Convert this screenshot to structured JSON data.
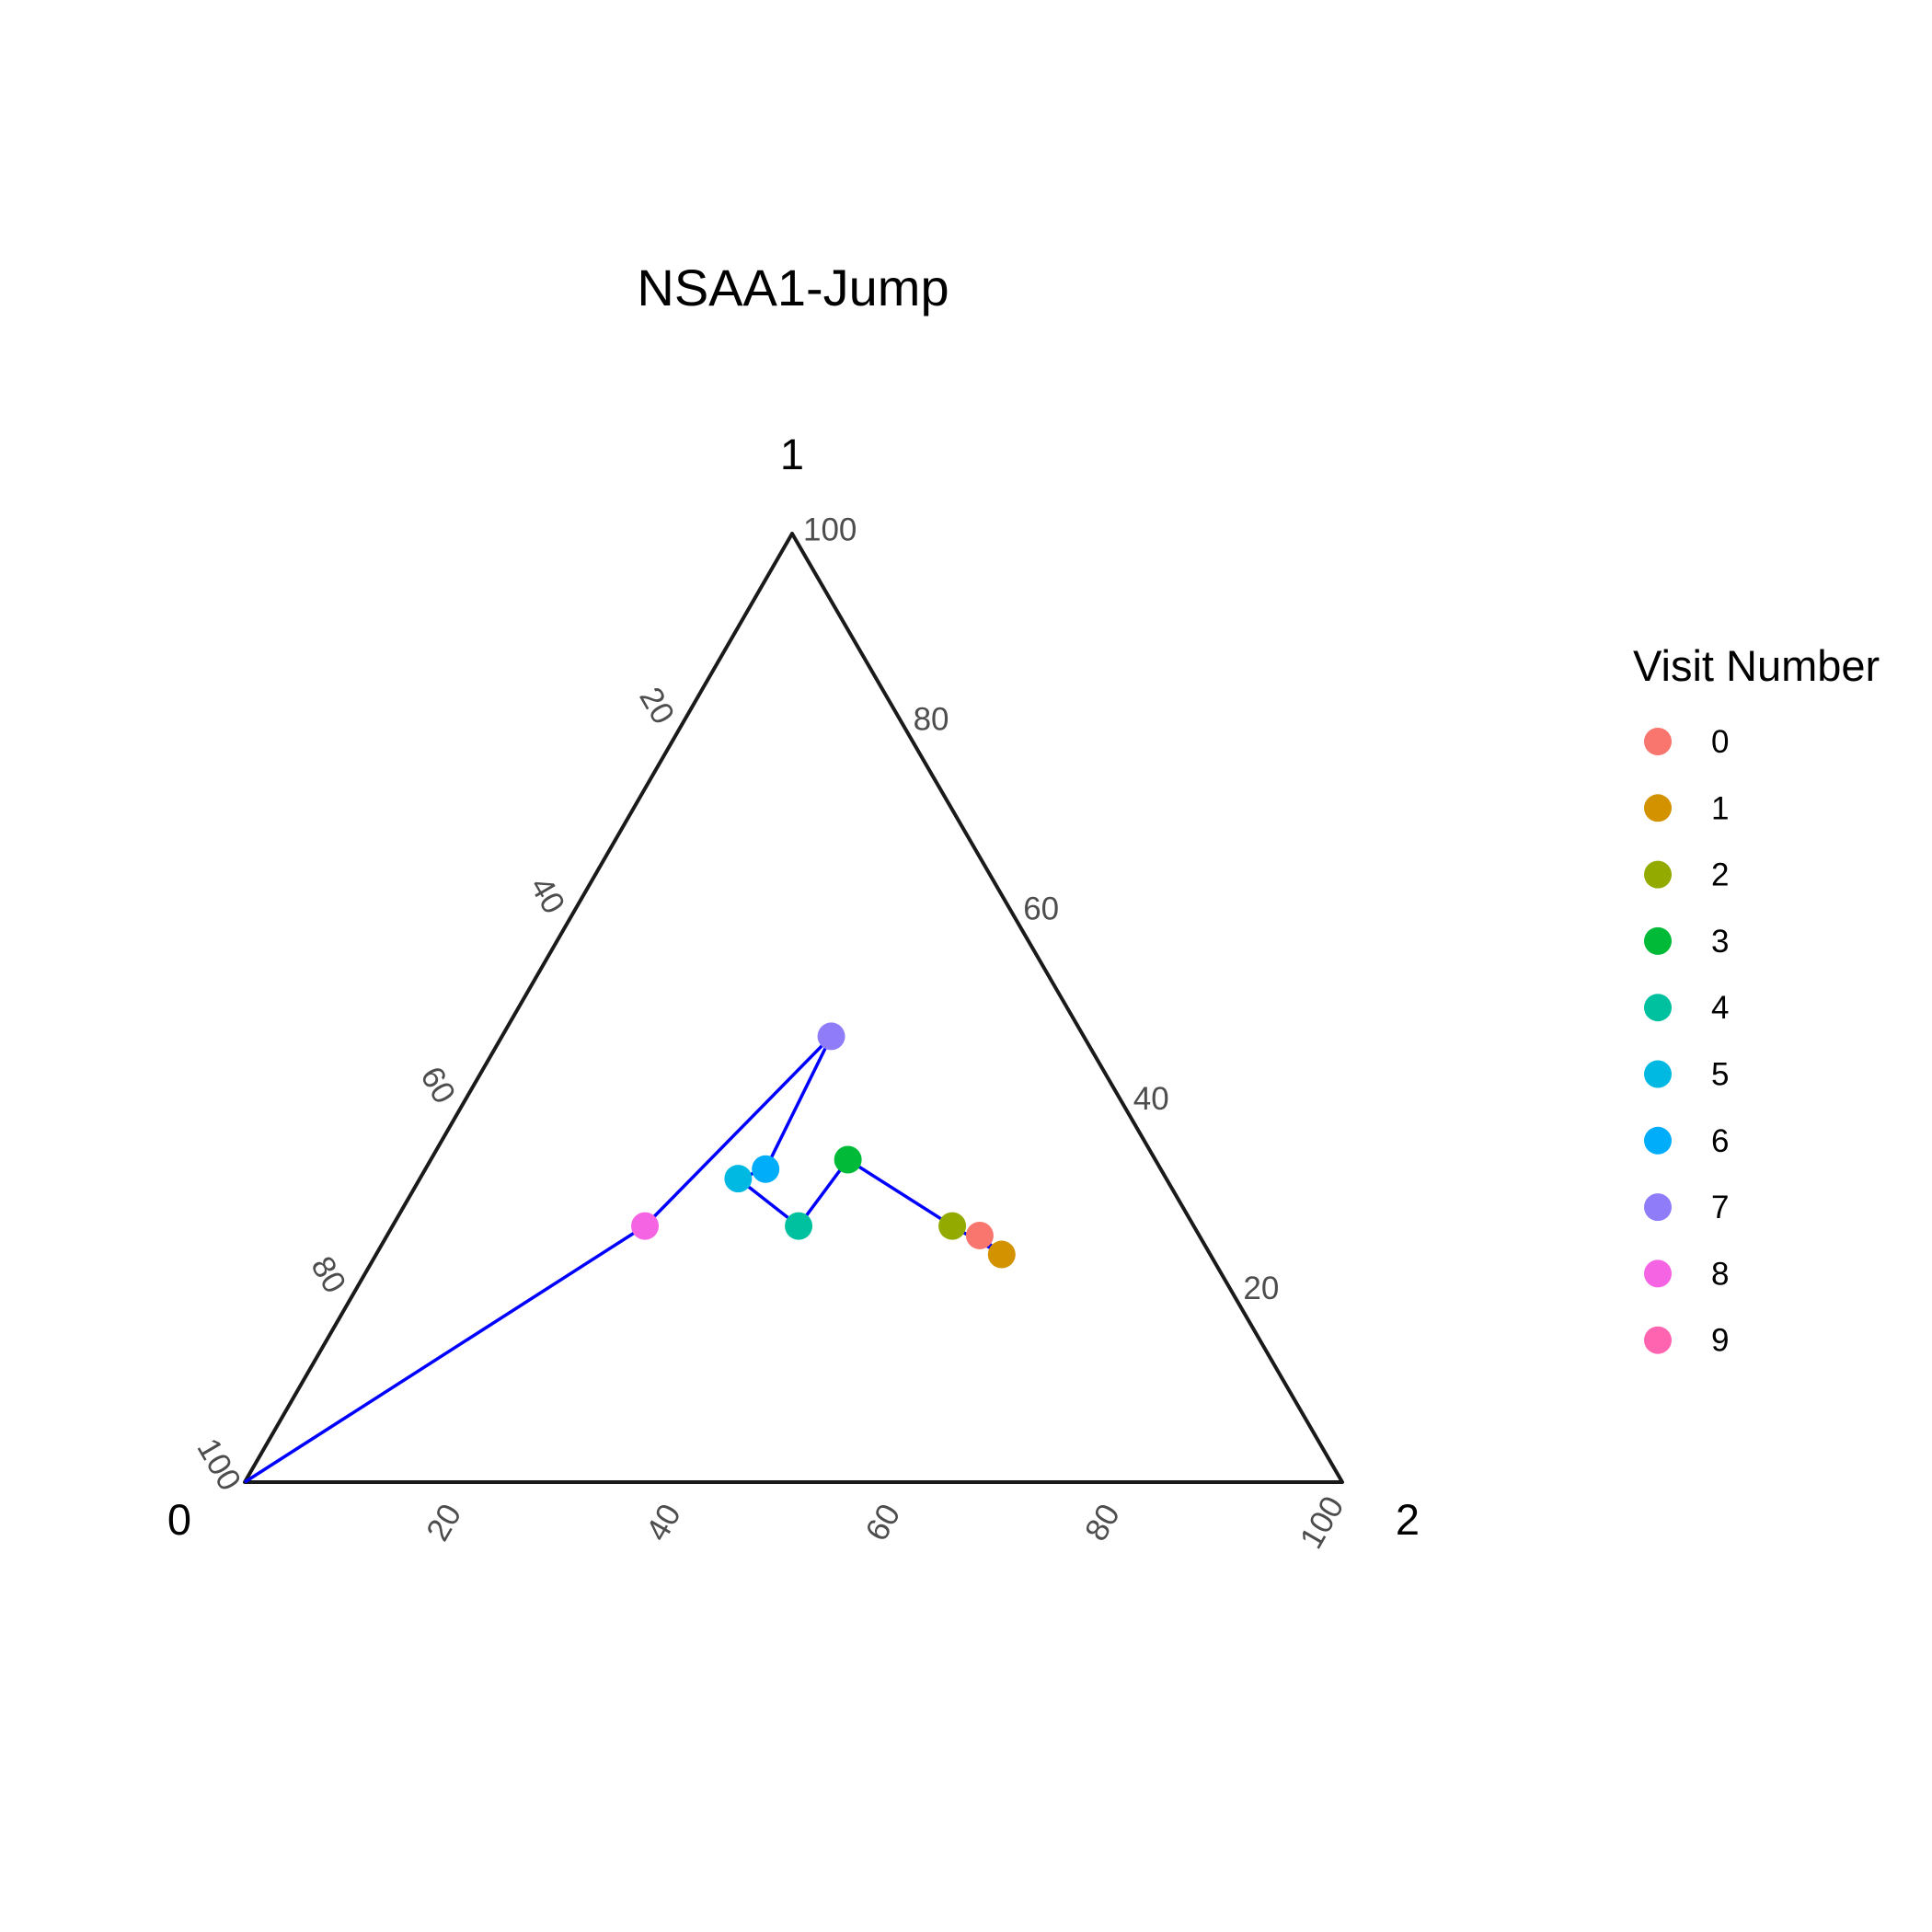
{
  "chart_data": {
    "type": "scatter",
    "subtype": "ternary",
    "title": "NSAA1-Jump",
    "axes": {
      "left_corner": "0",
      "top_corner": "1",
      "right_corner": "2"
    },
    "ticks": {
      "bottom": [
        "20",
        "40",
        "60",
        "80",
        "100"
      ],
      "right": [
        "20",
        "40",
        "60",
        "80",
        "100"
      ],
      "left": [
        "20",
        "40",
        "60",
        "80",
        "100"
      ]
    },
    "legend": {
      "title": "Visit Number",
      "placement": "right",
      "items": [
        {
          "label": "0",
          "color": "#F8766D"
        },
        {
          "label": "1",
          "color": "#D39200"
        },
        {
          "label": "2",
          "color": "#93AA00"
        },
        {
          "label": "3",
          "color": "#00BA38"
        },
        {
          "label": "4",
          "color": "#00C19F"
        },
        {
          "label": "5",
          "color": "#00B9E3"
        },
        {
          "label": "6",
          "color": "#00ADFA"
        },
        {
          "label": "7",
          "color": "#8E7CF8"
        },
        {
          "label": "8",
          "color": "#F564E3"
        },
        {
          "label": "9",
          "color": "#FF64B0"
        }
      ]
    },
    "points": [
      {
        "visit": "0",
        "p0": 20,
        "p1": 26,
        "p2": 54
      },
      {
        "visit": "1",
        "p0": 19,
        "p1": 24,
        "p2": 57
      },
      {
        "visit": "2",
        "p0": 22,
        "p1": 27,
        "p2": 51
      },
      {
        "visit": "3",
        "p0": 28,
        "p1": 34,
        "p2": 38
      },
      {
        "visit": "4",
        "p0": 36,
        "p1": 27,
        "p2": 37
      },
      {
        "visit": "5",
        "p0": 39,
        "p1": 32,
        "p2": 29
      },
      {
        "visit": "6",
        "p0": 36,
        "p1": 33,
        "p2": 31
      },
      {
        "visit": "7",
        "p0": 23,
        "p1": 47,
        "p2": 30
      },
      {
        "visit": "8",
        "p0": 50,
        "p1": 27,
        "p2": 23
      },
      {
        "visit": "9",
        "p0": 100,
        "p1": 0,
        "p2": 0
      }
    ],
    "line_color": "#0000FF"
  }
}
